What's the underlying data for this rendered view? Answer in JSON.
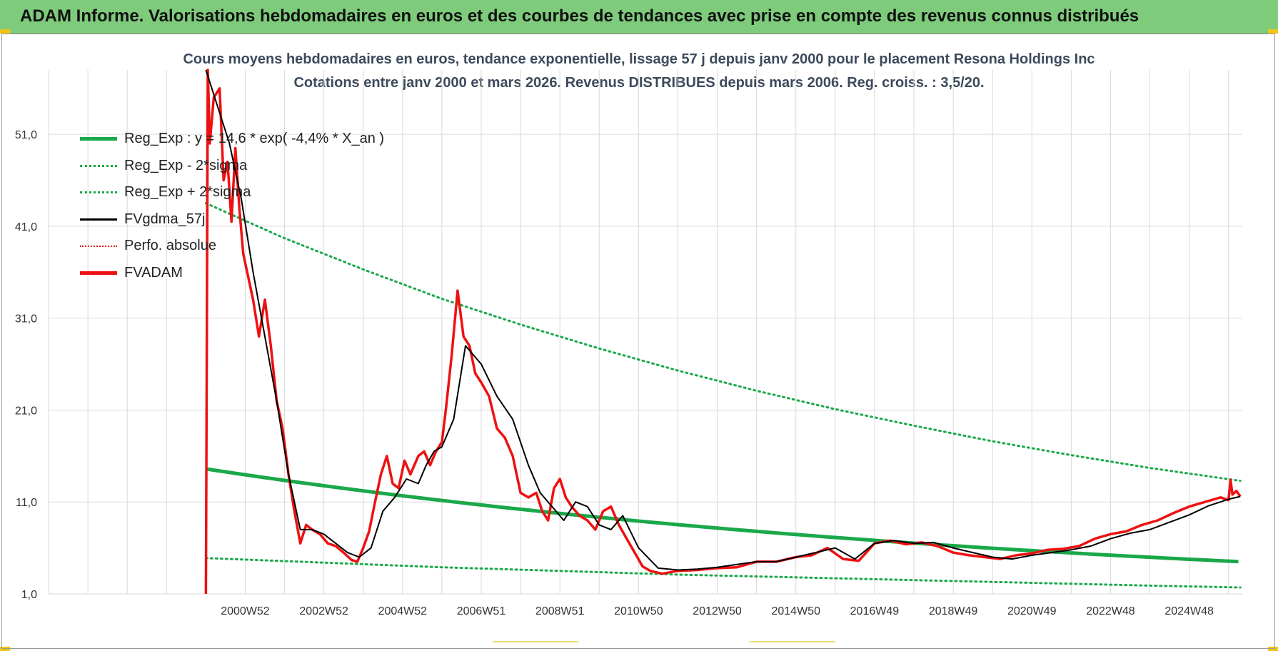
{
  "banner": {
    "title": "ADAM Informe. Valorisations hebdomadaires en euros et des courbes de tendances avec prise en compte des revenus connus distribués"
  },
  "colors": {
    "banner_bg": "#7ecb7c",
    "reg_exp": "#1aa84a",
    "sigma": "#1aa84a",
    "fvgdma": "#000000",
    "perfo": "#e00000",
    "fvadam": "#ee1111",
    "grid": "#d9d9d9",
    "title_text": "#3d4a5c"
  },
  "chart_data": {
    "type": "line",
    "title_line1": "Cours moyens hebdomadaires en euros, tendance exponentielle, lissage 57 j depuis janv 2000  pour le  placement Resona Holdings Inc",
    "title_line2": "Cotations entre janv 2000 et mars 2026. Revenus DISTRIBUES depuis mars 2006.  Reg. croiss. : 3,5/20.",
    "xlabel": "",
    "ylabel": "",
    "x_range": [
      1996.0,
      2026.35
    ],
    "ylim": [
      1.0,
      58.0
    ],
    "y_ticks": [
      1.0,
      11.0,
      21.0,
      31.0,
      41.0,
      51.0
    ],
    "y_tick_labels": [
      "1,0",
      "11,0",
      "21,0",
      "31,0",
      "41,0",
      "51,0"
    ],
    "x_ticks": [
      2001.0,
      2003.0,
      2005.0,
      2007.0,
      2009.0,
      2011.0,
      2013.0,
      2015.0,
      2017.0,
      2019.0,
      2021.0,
      2023.0,
      2025.0
    ],
    "x_tick_labels": [
      "2000W52",
      "2002W52",
      "2004W52",
      "2006W51",
      "2008W51",
      "2010W50",
      "2012W50",
      "2014W50",
      "2016W49",
      "2018W49",
      "2020W49",
      "2022W48",
      "2024W48"
    ],
    "grid": true,
    "legend_position": "top-left",
    "legend": [
      "Reg_Exp : y = 14,6 *  exp( -4,4% *  X_an )",
      "Reg_Exp - 2*sigma",
      "Reg_Exp + 2*sigma",
      "FVgdma_57j",
      "Perfo. absolue",
      "FVADAM"
    ],
    "series": [
      {
        "name": "Reg_Exp : y = 14,6 *  exp( -4,4% *  X_an )",
        "style": "solid-thick",
        "x": [
          2000.0,
          2026.3
        ],
        "y": [
          14.6,
          4.5
        ]
      },
      {
        "name": "Reg_Exp - 2*sigma",
        "style": "dotted",
        "x": [
          2000.0,
          2003.0,
          2006.0,
          2009.0,
          2012.0,
          2015.0,
          2018.0,
          2021.0,
          2024.0,
          2026.3
        ],
        "y": [
          4.9,
          4.4,
          3.9,
          3.5,
          3.1,
          2.8,
          2.5,
          2.2,
          1.9,
          1.7
        ]
      },
      {
        "name": "Reg_Exp + 2*sigma",
        "style": "dotted",
        "x": [
          2000.0,
          2002.0,
          2004.0,
          2006.0,
          2008.0,
          2010.0,
          2012.0,
          2014.0,
          2016.0,
          2018.0,
          2020.0,
          2022.0,
          2024.0,
          2026.3
        ],
        "y": [
          43.5,
          39.7,
          36.3,
          33.1,
          30.3,
          27.7,
          25.3,
          23.1,
          21.1,
          19.3,
          17.6,
          16.1,
          14.7,
          13.3
        ]
      },
      {
        "name": "FVgdma_57j",
        "style": "solid",
        "x": [
          2000.0,
          2000.3,
          2000.6,
          2000.9,
          2001.2,
          2001.5,
          2001.8,
          2002.1,
          2002.4,
          2002.7,
          2003.0,
          2003.3,
          2003.6,
          2003.9,
          2004.2,
          2004.5,
          2004.8,
          2005.1,
          2005.4,
          2005.6,
          2005.8,
          2006.0,
          2006.3,
          2006.6,
          2007.0,
          2007.4,
          2007.8,
          2008.2,
          2008.5,
          2008.8,
          2009.1,
          2009.4,
          2009.7,
          2010.0,
          2010.3,
          2010.6,
          2011.0,
          2011.5,
          2012.0,
          2012.5,
          2013.0,
          2013.5,
          2014.0,
          2014.5,
          2015.0,
          2015.5,
          2016.0,
          2016.5,
          2017.0,
          2017.5,
          2018.0,
          2018.5,
          2019.0,
          2019.5,
          2020.0,
          2020.5,
          2021.0,
          2021.5,
          2022.0,
          2022.5,
          2023.0,
          2023.5,
          2024.0,
          2024.5,
          2025.0,
          2025.5,
          2026.0,
          2026.3
        ],
        "y": [
          58.0,
          54.0,
          50.0,
          44.0,
          36.0,
          29.0,
          22.0,
          14.0,
          8.0,
          8.0,
          7.5,
          6.5,
          5.5,
          5.0,
          6.0,
          10.0,
          11.5,
          13.5,
          13.0,
          15.0,
          16.5,
          17.0,
          20.0,
          28.0,
          26.0,
          22.5,
          20.0,
          15.0,
          12.0,
          10.5,
          9.0,
          11.0,
          10.5,
          8.5,
          8.0,
          9.5,
          6.0,
          3.8,
          3.6,
          3.7,
          3.9,
          4.2,
          4.5,
          4.5,
          5.0,
          5.5,
          6.0,
          4.8,
          6.5,
          6.8,
          6.5,
          6.6,
          6.0,
          5.5,
          5.0,
          4.8,
          5.2,
          5.5,
          5.8,
          6.2,
          7.0,
          7.6,
          8.0,
          8.8,
          9.6,
          10.6,
          11.3,
          11.6
        ]
      },
      {
        "name": "FVADAM",
        "style": "solid-thick",
        "x": [
          2000.0,
          2000.05,
          2000.1,
          2000.2,
          2000.35,
          2000.45,
          2000.55,
          2000.65,
          2000.75,
          2000.85,
          2000.95,
          2001.05,
          2001.2,
          2001.35,
          2001.5,
          2001.65,
          2001.8,
          2001.95,
          2002.1,
          2002.25,
          2002.4,
          2002.55,
          2002.7,
          2002.9,
          2003.1,
          2003.3,
          2003.5,
          2003.7,
          2003.85,
          2004.0,
          2004.15,
          2004.3,
          2004.45,
          2004.6,
          2004.75,
          2004.9,
          2005.05,
          2005.2,
          2005.4,
          2005.55,
          2005.7,
          2005.85,
          2006.0,
          2006.1,
          2006.25,
          2006.4,
          2006.55,
          2006.7,
          2006.85,
          2007.0,
          2007.2,
          2007.4,
          2007.6,
          2007.8,
          2008.0,
          2008.2,
          2008.4,
          2008.55,
          2008.7,
          2008.85,
          2009.0,
          2009.15,
          2009.3,
          2009.5,
          2009.7,
          2009.9,
          2010.1,
          2010.3,
          2010.5,
          2010.7,
          2010.9,
          2011.1,
          2011.3,
          2011.6,
          2012.0,
          2012.5,
          2013.0,
          2013.5,
          2014.0,
          2014.5,
          2015.0,
          2015.4,
          2015.8,
          2016.2,
          2016.6,
          2017.0,
          2017.4,
          2017.8,
          2018.2,
          2018.6,
          2019.0,
          2019.4,
          2019.8,
          2020.2,
          2020.6,
          2021.0,
          2021.4,
          2021.8,
          2022.2,
          2022.6,
          2023.0,
          2023.4,
          2023.8,
          2024.2,
          2024.6,
          2025.0,
          2025.4,
          2025.8,
          2026.0,
          2026.05,
          2026.1,
          2026.2,
          2026.3
        ],
        "y": [
          1.0,
          58.0,
          50.0,
          55.0,
          56.0,
          46.0,
          48.0,
          41.5,
          49.5,
          43.0,
          38.0,
          36.0,
          33.0,
          29.0,
          33.0,
          28.0,
          22.0,
          19.0,
          14.0,
          10.0,
          6.5,
          8.5,
          8.0,
          7.5,
          6.5,
          6.2,
          5.5,
          4.7,
          4.5,
          6.0,
          7.8,
          11.0,
          14.0,
          16.0,
          13.0,
          12.5,
          15.5,
          14.0,
          16.0,
          16.5,
          15.0,
          16.5,
          17.5,
          21.0,
          27.0,
          34.0,
          29.0,
          28.0,
          25.0,
          24.0,
          22.5,
          19.0,
          18.0,
          16.0,
          12.0,
          11.5,
          12.0,
          10.0,
          9.0,
          12.5,
          13.5,
          11.5,
          10.5,
          9.5,
          9.0,
          8.0,
          10.0,
          10.5,
          8.5,
          7.0,
          5.5,
          4.0,
          3.5,
          3.2,
          3.5,
          3.6,
          3.8,
          3.9,
          4.5,
          4.5,
          5.0,
          5.2,
          6.0,
          4.8,
          4.6,
          6.5,
          6.8,
          6.4,
          6.6,
          6.2,
          5.5,
          5.2,
          5.0,
          4.8,
          5.2,
          5.4,
          5.8,
          5.9,
          6.2,
          7.0,
          7.5,
          7.8,
          8.5,
          9.0,
          9.8,
          10.5,
          11.0,
          11.5,
          11.2,
          13.4,
          11.8,
          12.2,
          11.6
        ]
      }
    ]
  }
}
